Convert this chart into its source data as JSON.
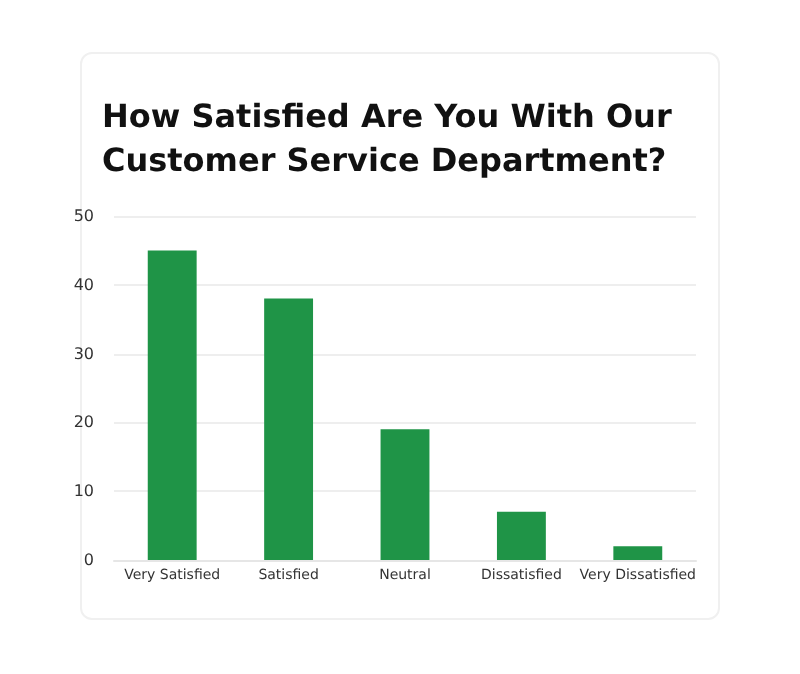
{
  "chart_data": {
    "type": "bar",
    "title": "How Satisfied Are You With Our\nCustomer Service Department?",
    "categories": [
      "Very Satisfied",
      "Satisfied",
      "Neutral",
      "Dissatisfied",
      "Very Dissatisfied"
    ],
    "values": [
      45,
      38,
      19,
      7,
      2
    ],
    "color": "#1f9447",
    "ylim": [
      0,
      50
    ],
    "yticks": [
      0,
      10,
      20,
      30,
      40,
      50
    ],
    "grid": "y"
  }
}
